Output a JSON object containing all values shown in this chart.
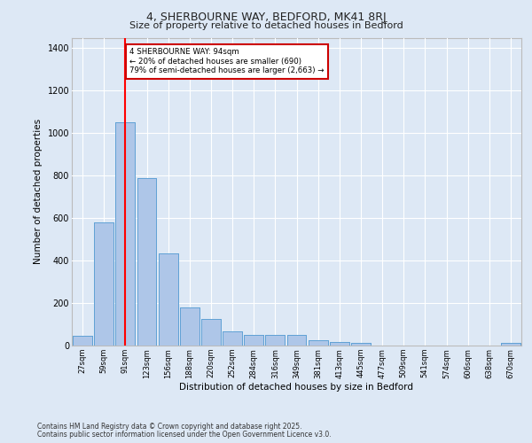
{
  "title1": "4, SHERBOURNE WAY, BEDFORD, MK41 8RJ",
  "title2": "Size of property relative to detached houses in Bedford",
  "xlabel": "Distribution of detached houses by size in Bedford",
  "ylabel": "Number of detached properties",
  "categories": [
    "27sqm",
    "59sqm",
    "91sqm",
    "123sqm",
    "156sqm",
    "188sqm",
    "220sqm",
    "252sqm",
    "284sqm",
    "316sqm",
    "349sqm",
    "381sqm",
    "413sqm",
    "445sqm",
    "477sqm",
    "509sqm",
    "541sqm",
    "574sqm",
    "606sqm",
    "638sqm",
    "670sqm"
  ],
  "values": [
    45,
    580,
    1050,
    790,
    435,
    180,
    125,
    65,
    48,
    48,
    48,
    25,
    18,
    12,
    0,
    0,
    0,
    0,
    0,
    0,
    12
  ],
  "bar_color": "#aec6e8",
  "bar_edge_color": "#5a9fd4",
  "red_line_index": 2,
  "annotation_lines": [
    "4 SHERBOURNE WAY: 94sqm",
    "← 20% of detached houses are smaller (690)",
    "79% of semi-detached houses are larger (2,663) →"
  ],
  "annotation_box_color": "#ffffff",
  "annotation_box_edge_color": "#cc0000",
  "background_color": "#dde8f5",
  "plot_bg_color": "#dde8f5",
  "grid_color": "#ffffff",
  "ylim": [
    0,
    1450
  ],
  "yticks": [
    0,
    200,
    400,
    600,
    800,
    1000,
    1200,
    1400
  ],
  "footer_line1": "Contains HM Land Registry data © Crown copyright and database right 2025.",
  "footer_line2": "Contains public sector information licensed under the Open Government Licence v3.0."
}
